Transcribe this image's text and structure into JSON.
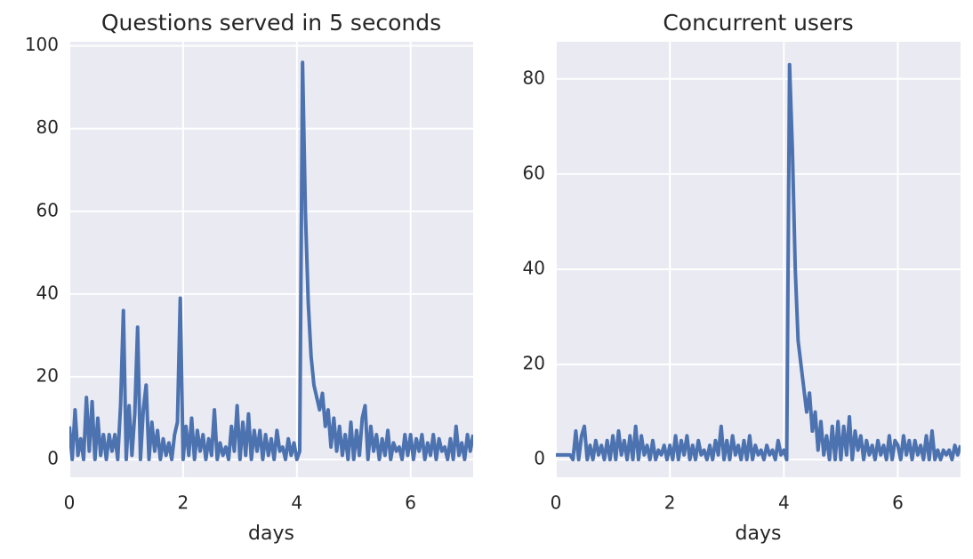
{
  "chart_data": [
    {
      "type": "line",
      "title": "Questions served in 5 seconds",
      "xlabel": "days",
      "xlim": [
        0,
        7.1
      ],
      "ylim": [
        -4.3,
        101
      ],
      "xticks": [
        0,
        2,
        4,
        6
      ],
      "yticks": [
        0,
        20,
        40,
        60,
        80,
        100
      ],
      "grid": true,
      "x": [
        0,
        0.05,
        0.1,
        0.15,
        0.2,
        0.25,
        0.3,
        0.35,
        0.4,
        0.45,
        0.5,
        0.55,
        0.6,
        0.65,
        0.7,
        0.75,
        0.8,
        0.85,
        0.9,
        0.95,
        1,
        1.05,
        1.1,
        1.15,
        1.2,
        1.25,
        1.3,
        1.35,
        1.4,
        1.45,
        1.5,
        1.55,
        1.6,
        1.65,
        1.7,
        1.75,
        1.8,
        1.85,
        1.9,
        1.95,
        2,
        2.05,
        2.1,
        2.15,
        2.2,
        2.25,
        2.3,
        2.35,
        2.4,
        2.45,
        2.5,
        2.55,
        2.6,
        2.65,
        2.7,
        2.75,
        2.8,
        2.85,
        2.9,
        2.95,
        3,
        3.05,
        3.1,
        3.15,
        3.2,
        3.25,
        3.3,
        3.35,
        3.4,
        3.45,
        3.5,
        3.55,
        3.6,
        3.65,
        3.7,
        3.75,
        3.8,
        3.85,
        3.9,
        3.95,
        4,
        4.05,
        4.1,
        4.15,
        4.2,
        4.25,
        4.3,
        4.35,
        4.4,
        4.45,
        4.5,
        4.55,
        4.6,
        4.65,
        4.7,
        4.75,
        4.8,
        4.85,
        4.9,
        4.95,
        5,
        5.05,
        5.1,
        5.15,
        5.2,
        5.25,
        5.3,
        5.35,
        5.4,
        5.45,
        5.5,
        5.55,
        5.6,
        5.65,
        5.7,
        5.75,
        5.8,
        5.85,
        5.9,
        5.95,
        6,
        6.05,
        6.1,
        6.15,
        6.2,
        6.25,
        6.3,
        6.35,
        6.4,
        6.45,
        6.5,
        6.55,
        6.6,
        6.65,
        6.7,
        6.75,
        6.8,
        6.85,
        6.9,
        6.95,
        7,
        7.05,
        7.1
      ],
      "series": [
        {
          "color": "#4c72b0",
          "values": [
            8,
            0,
            12,
            1,
            5,
            0,
            15,
            2,
            14,
            0,
            10,
            1,
            6,
            0,
            6,
            2,
            6,
            0,
            13,
            36,
            0,
            13,
            1,
            11,
            32,
            0,
            12,
            18,
            0,
            9,
            2,
            7,
            0,
            5,
            1,
            4,
            0,
            6,
            9,
            39,
            0,
            8,
            1,
            10,
            0,
            7,
            2,
            6,
            0,
            5,
            1,
            12,
            0,
            4,
            1,
            3,
            0,
            8,
            2,
            13,
            0,
            9,
            1,
            11,
            0,
            7,
            2,
            7,
            0,
            6,
            1,
            5,
            0,
            7,
            2,
            3,
            0,
            5,
            1,
            4,
            0,
            2,
            96,
            60,
            38,
            25,
            18,
            15,
            12,
            16,
            8,
            12,
            3,
            10,
            2,
            8,
            1,
            6,
            0,
            9,
            0,
            7,
            1,
            10,
            13,
            0,
            8,
            2,
            6,
            0,
            5,
            1,
            7,
            0,
            4,
            2,
            3,
            0,
            6,
            1,
            6,
            0,
            5,
            2,
            6,
            0,
            4,
            1,
            6,
            0,
            5,
            2,
            3,
            0,
            5,
            0,
            8,
            1,
            4,
            0,
            6,
            2,
            6
          ]
        }
      ]
    },
    {
      "type": "line",
      "title": "Concurrent users",
      "xlabel": "days",
      "xlim": [
        0,
        7.1
      ],
      "ylim": [
        -3.7,
        87.8
      ],
      "xticks": [
        0,
        2,
        4,
        6
      ],
      "yticks": [
        0,
        20,
        40,
        60,
        80
      ],
      "grid": true,
      "x": [
        0,
        0.05,
        0.1,
        0.15,
        0.2,
        0.25,
        0.3,
        0.35,
        0.4,
        0.45,
        0.5,
        0.55,
        0.6,
        0.65,
        0.7,
        0.75,
        0.8,
        0.85,
        0.9,
        0.95,
        1,
        1.05,
        1.1,
        1.15,
        1.2,
        1.25,
        1.3,
        1.35,
        1.4,
        1.45,
        1.5,
        1.55,
        1.6,
        1.65,
        1.7,
        1.75,
        1.8,
        1.85,
        1.9,
        1.95,
        2,
        2.05,
        2.1,
        2.15,
        2.2,
        2.25,
        2.3,
        2.35,
        2.4,
        2.45,
        2.5,
        2.55,
        2.6,
        2.65,
        2.7,
        2.75,
        2.8,
        2.85,
        2.9,
        2.95,
        3,
        3.05,
        3.1,
        3.15,
        3.2,
        3.25,
        3.3,
        3.35,
        3.4,
        3.45,
        3.5,
        3.55,
        3.6,
        3.65,
        3.7,
        3.75,
        3.8,
        3.85,
        3.9,
        3.95,
        4,
        4.05,
        4.1,
        4.15,
        4.2,
        4.25,
        4.3,
        4.35,
        4.4,
        4.45,
        4.5,
        4.55,
        4.6,
        4.65,
        4.7,
        4.75,
        4.8,
        4.85,
        4.9,
        4.95,
        5,
        5.05,
        5.1,
        5.15,
        5.2,
        5.25,
        5.3,
        5.35,
        5.4,
        5.45,
        5.5,
        5.55,
        5.6,
        5.65,
        5.7,
        5.75,
        5.8,
        5.85,
        5.9,
        5.95,
        6,
        6.05,
        6.1,
        6.15,
        6.2,
        6.25,
        6.3,
        6.35,
        6.4,
        6.45,
        6.5,
        6.55,
        6.6,
        6.65,
        6.7,
        6.75,
        6.8,
        6.85,
        6.9,
        6.95,
        7,
        7.05,
        7.1
      ],
      "series": [
        {
          "color": "#4c72b0",
          "values": [
            1,
            1,
            1,
            1,
            1,
            1,
            0,
            6,
            0,
            5,
            7,
            0,
            3,
            0,
            4,
            1,
            3,
            0,
            4,
            0,
            5,
            0,
            6,
            1,
            4,
            0,
            5,
            0,
            7,
            0,
            5,
            1,
            3,
            0,
            4,
            0,
            2,
            1,
            3,
            0,
            3,
            0,
            5,
            0,
            4,
            1,
            5,
            0,
            3,
            0,
            4,
            1,
            2,
            0,
            3,
            0,
            4,
            1,
            7,
            0,
            4,
            0,
            5,
            1,
            3,
            0,
            4,
            0,
            5,
            0,
            3,
            1,
            2,
            0,
            3,
            1,
            2,
            0,
            4,
            1,
            2,
            0,
            83,
            65,
            40,
            25,
            20,
            15,
            10,
            14,
            6,
            10,
            2,
            8,
            1,
            5,
            0,
            7,
            0,
            8,
            0,
            7,
            1,
            9,
            0,
            6,
            2,
            5,
            0,
            4,
            1,
            3,
            0,
            4,
            1,
            3,
            0,
            5,
            0,
            4,
            3,
            0,
            5,
            1,
            4,
            0,
            4,
            1,
            3,
            0,
            5,
            0,
            6,
            0,
            2,
            0,
            2,
            1,
            2,
            0,
            3,
            1,
            3
          ]
        }
      ]
    }
  ]
}
